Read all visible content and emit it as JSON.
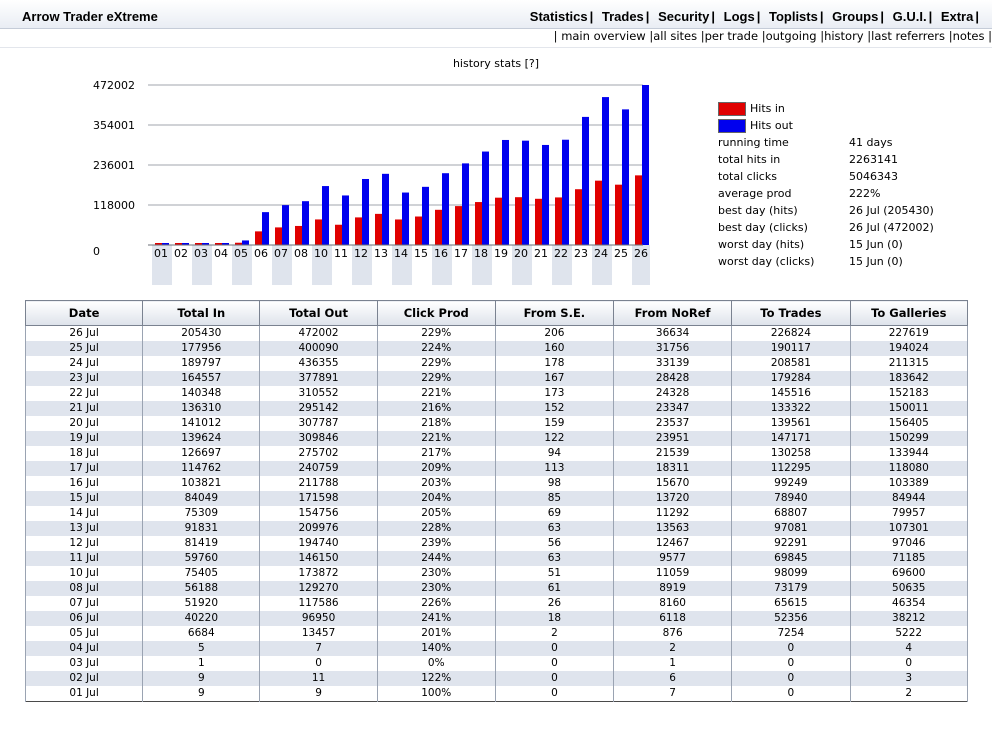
{
  "app": {
    "title": "Arrow Trader eXtreme"
  },
  "top_menu": [
    "Statistics",
    "Trades",
    "Security",
    "Logs",
    "Toplists",
    "Groups",
    "G.U.I.",
    "Extra"
  ],
  "sub_menu": [
    "main overview",
    "all sites",
    "per trade",
    "outgoing",
    "history",
    "last referrers",
    "notes"
  ],
  "chart_title": "history stats [?]",
  "colors": {
    "hits_in": "#e00000",
    "hits_out": "#0000ee",
    "row_alt": "#dfe4ed"
  },
  "chart_data": {
    "type": "bar",
    "categories": [
      "01",
      "02",
      "03",
      "04",
      "05",
      "06",
      "07",
      "08",
      "10",
      "11",
      "12",
      "13",
      "14",
      "15",
      "16",
      "17",
      "18",
      "19",
      "20",
      "21",
      "22",
      "23",
      "24",
      "25",
      "26"
    ],
    "series": [
      {
        "name": "Hits in",
        "values": [
          9,
          9,
          1,
          5,
          6684,
          40220,
          51920,
          56188,
          75405,
          59760,
          81419,
          91831,
          75309,
          84049,
          103821,
          114762,
          126697,
          139624,
          141012,
          136310,
          140348,
          164557,
          189797,
          177956,
          205430
        ]
      },
      {
        "name": "Hits out",
        "values": [
          9,
          11,
          0,
          7,
          13457,
          96950,
          117586,
          129270,
          173872,
          146150,
          194740,
          209976,
          154756,
          171598,
          211788,
          240759,
          275702,
          309846,
          307787,
          295142,
          310552,
          377891,
          436355,
          400090,
          472002
        ]
      }
    ],
    "yticks": [
      "0",
      "118000",
      "236001",
      "354001",
      "472002"
    ],
    "ylim": [
      0,
      472002
    ],
    "grid": true
  },
  "legend": {
    "in_label": "Hits in",
    "out_label": "Hits out"
  },
  "stats": [
    {
      "k": "running time",
      "v": "41 days"
    },
    {
      "k": "total hits in",
      "v": "2263141"
    },
    {
      "k": "total clicks",
      "v": "5046343"
    },
    {
      "k": "average prod",
      "v": "222%"
    },
    {
      "k": "best day (hits)",
      "v": "26 Jul (205430)"
    },
    {
      "k": "best day (clicks)",
      "v": "26 Jul (472002)"
    },
    {
      "k": "worst day (hits)",
      "v": "15 Jun (0)"
    },
    {
      "k": "worst day (clicks)",
      "v": "15 Jun (0)"
    }
  ],
  "table": {
    "headers": [
      "Date",
      "Total In",
      "Total Out",
      "Click Prod",
      "From S.E.",
      "From NoRef",
      "To Trades",
      "To Galleries"
    ],
    "rows": [
      [
        "26 Jul",
        "205430",
        "472002",
        "229%",
        "206",
        "36634",
        "226824",
        "227619"
      ],
      [
        "25 Jul",
        "177956",
        "400090",
        "224%",
        "160",
        "31756",
        "190117",
        "194024"
      ],
      [
        "24 Jul",
        "189797",
        "436355",
        "229%",
        "178",
        "33139",
        "208581",
        "211315"
      ],
      [
        "23 Jul",
        "164557",
        "377891",
        "229%",
        "167",
        "28428",
        "179284",
        "183642"
      ],
      [
        "22 Jul",
        "140348",
        "310552",
        "221%",
        "173",
        "24328",
        "145516",
        "152183"
      ],
      [
        "21 Jul",
        "136310",
        "295142",
        "216%",
        "152",
        "23347",
        "133322",
        "150011"
      ],
      [
        "20 Jul",
        "141012",
        "307787",
        "218%",
        "159",
        "23537",
        "139561",
        "156405"
      ],
      [
        "19 Jul",
        "139624",
        "309846",
        "221%",
        "122",
        "23951",
        "147171",
        "150299"
      ],
      [
        "18 Jul",
        "126697",
        "275702",
        "217%",
        "94",
        "21539",
        "130258",
        "133944"
      ],
      [
        "17 Jul",
        "114762",
        "240759",
        "209%",
        "113",
        "18311",
        "112295",
        "118080"
      ],
      [
        "16 Jul",
        "103821",
        "211788",
        "203%",
        "98",
        "15670",
        "99249",
        "103389"
      ],
      [
        "15 Jul",
        "84049",
        "171598",
        "204%",
        "85",
        "13720",
        "78940",
        "84944"
      ],
      [
        "14 Jul",
        "75309",
        "154756",
        "205%",
        "69",
        "11292",
        "68807",
        "79957"
      ],
      [
        "13 Jul",
        "91831",
        "209976",
        "228%",
        "63",
        "13563",
        "97081",
        "107301"
      ],
      [
        "12 Jul",
        "81419",
        "194740",
        "239%",
        "56",
        "12467",
        "92291",
        "97046"
      ],
      [
        "11 Jul",
        "59760",
        "146150",
        "244%",
        "63",
        "9577",
        "69845",
        "71185"
      ],
      [
        "10 Jul",
        "75405",
        "173872",
        "230%",
        "51",
        "11059",
        "98099",
        "69600"
      ],
      [
        "08 Jul",
        "56188",
        "129270",
        "230%",
        "61",
        "8919",
        "73179",
        "50635"
      ],
      [
        "07 Jul",
        "51920",
        "117586",
        "226%",
        "26",
        "8160",
        "65615",
        "46354"
      ],
      [
        "06 Jul",
        "40220",
        "96950",
        "241%",
        "18",
        "6118",
        "52356",
        "38212"
      ],
      [
        "05 Jul",
        "6684",
        "13457",
        "201%",
        "2",
        "876",
        "7254",
        "5222"
      ],
      [
        "04 Jul",
        "5",
        "7",
        "140%",
        "0",
        "2",
        "0",
        "4"
      ],
      [
        "03 Jul",
        "1",
        "0",
        "0%",
        "0",
        "1",
        "0",
        "0"
      ],
      [
        "02 Jul",
        "9",
        "11",
        "122%",
        "0",
        "6",
        "0",
        "3"
      ],
      [
        "01 Jul",
        "9",
        "9",
        "100%",
        "0",
        "7",
        "0",
        "2"
      ]
    ]
  }
}
